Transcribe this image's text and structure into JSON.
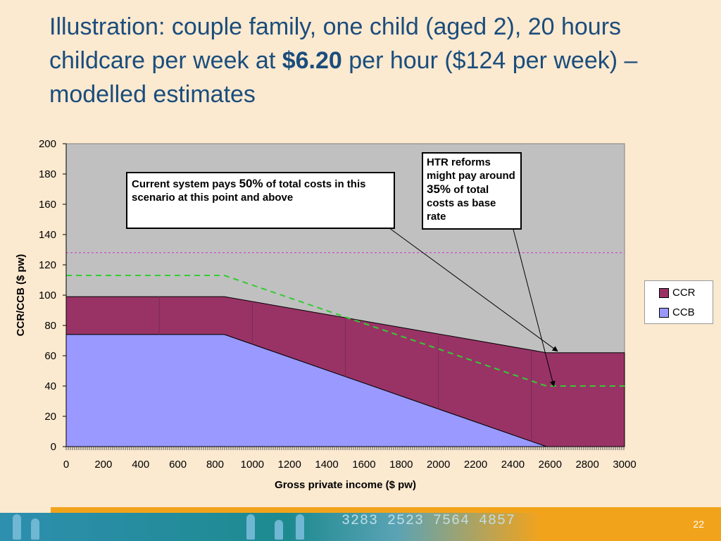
{
  "title": {
    "part1": "Illustration: couple family, one child (aged 2), 20 hours childcare per week at ",
    "bold": "$6.20",
    "part2": " per hour ($124 per week) – modelled estimates"
  },
  "annotations": {
    "current": {
      "pre": "Current system pays ",
      "big": "50%",
      "post": " of total costs in this scenario at this point and above"
    },
    "htr": {
      "pre": "HTR reforms might pay around ",
      "big": "35%",
      "post": " of total costs as base rate"
    }
  },
  "footer": {
    "slide_number": "22",
    "digits": "3283  2523  7564  4857"
  },
  "chart_data": {
    "type": "area",
    "xlabel": "Gross private income ($ pw)",
    "ylabel": "CCR/CCB ($ pw)",
    "xlim": [
      0,
      3000
    ],
    "ylim": [
      0,
      200
    ],
    "xticks": [
      0,
      200,
      400,
      600,
      800,
      1000,
      1200,
      1400,
      1600,
      1800,
      2000,
      2200,
      2400,
      2600,
      2800,
      3000
    ],
    "yticks": [
      0,
      20,
      40,
      60,
      80,
      100,
      120,
      140,
      160,
      180,
      200
    ],
    "stacked": true,
    "series": [
      {
        "name": "CCB",
        "color": "#9999FF",
        "x": [
          0,
          850,
          2580,
          3000
        ],
        "values": [
          74,
          74,
          0,
          0
        ]
      },
      {
        "name": "CCR",
        "color": "#993366",
        "x": [
          0,
          850,
          2580,
          3000
        ],
        "top_values": [
          99,
          99,
          62,
          62
        ]
      }
    ],
    "reference_lines": [
      {
        "type": "dashed",
        "color": "#33CC33",
        "x": [
          0,
          850,
          2580,
          3000
        ],
        "values": [
          113,
          113,
          40,
          40
        ]
      },
      {
        "type": "dotted",
        "color": "#CC33CC",
        "x": [
          0,
          3000
        ],
        "values": [
          128,
          128
        ]
      }
    ],
    "legend": {
      "position": "right",
      "items": [
        "CCR",
        "CCB"
      ]
    },
    "colors": {
      "plot_bg": "#C0C0C0",
      "page_bg": "#FBE9D0",
      "title": "#1A4D7C"
    }
  }
}
